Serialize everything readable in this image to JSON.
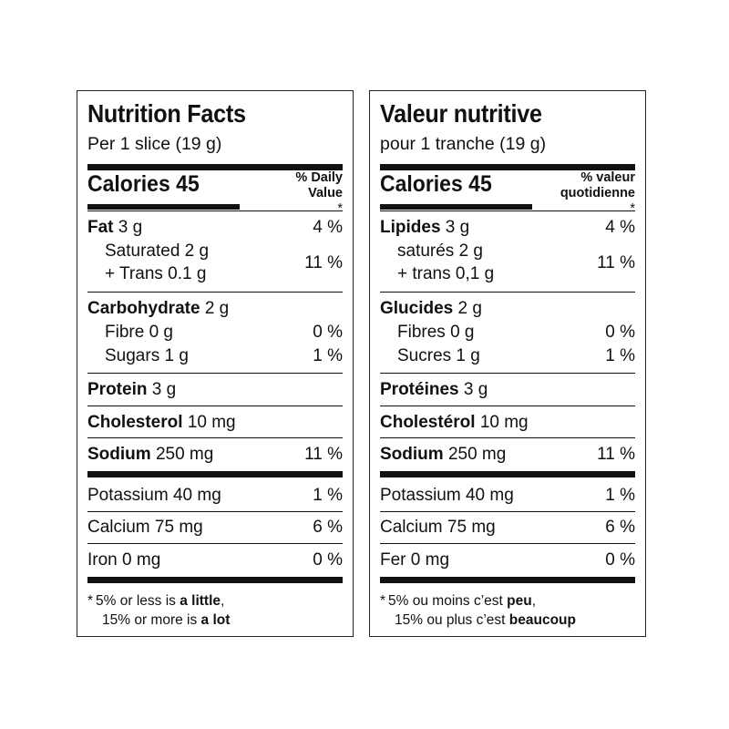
{
  "english": {
    "title": "Nutrition Facts",
    "serving": "Per 1 slice (19 g)",
    "calories_label": "Calories 45",
    "dv_line1": "% Daily",
    "dv_line2": "Value",
    "dv_star": "*",
    "fat_label": "Fat",
    "fat_amount": "3 g",
    "fat_pct": "4 %",
    "saturated": "Saturated 2 g",
    "trans": "+ Trans 0.1 g",
    "sat_trans_pct": "11 %",
    "carb_label": "Carbohydrate",
    "carb_amount": "2 g",
    "fibre": "Fibre 0 g",
    "fibre_pct": "0 %",
    "sugars": "Sugars 1 g",
    "sugars_pct": "1 %",
    "protein_label": "Protein",
    "protein_amount": "3 g",
    "chol_label": "Cholesterol",
    "chol_amount": "10 mg",
    "sodium_label": "Sodium",
    "sodium_amount": "250 mg",
    "sodium_pct": "11 %",
    "potassium": "Potassium 40 mg",
    "potassium_pct": "1 %",
    "calcium": "Calcium 75 mg",
    "calcium_pct": "6 %",
    "iron": "Iron 0 mg",
    "iron_pct": "0 %",
    "foot_star": "*",
    "foot_l1_pre": "5% or less is ",
    "foot_l1_bold": "a little",
    "foot_l1_post": ",",
    "foot_l2_pre": "15% or more is ",
    "foot_l2_bold": "a lot"
  },
  "french": {
    "title": "Valeur nutritive",
    "serving": "pour 1 tranche (19 g)",
    "calories_label": "Calories 45",
    "dv_line1": "% valeur",
    "dv_line2": "quotidienne",
    "dv_star": "*",
    "fat_label": "Lipides",
    "fat_amount": "3 g",
    "fat_pct": "4 %",
    "saturated": "saturés 2 g",
    "trans": "+ trans 0,1 g",
    "sat_trans_pct": "11 %",
    "carb_label": "Glucides",
    "carb_amount": "2 g",
    "fibre": "Fibres 0 g",
    "fibre_pct": "0 %",
    "sugars": "Sucres 1 g",
    "sugars_pct": "1 %",
    "protein_label": "Protéines",
    "protein_amount": "3 g",
    "chol_label": "Cholestérol",
    "chol_amount": "10 mg",
    "sodium_label": "Sodium",
    "sodium_amount": "250 mg",
    "sodium_pct": "11 %",
    "potassium": "Potassium 40 mg",
    "potassium_pct": "1 %",
    "calcium": "Calcium 75 mg",
    "calcium_pct": "6 %",
    "iron": "Fer 0 mg",
    "iron_pct": "0 %",
    "foot_star": "*",
    "foot_l1_pre": "5% ou moins c’est ",
    "foot_l1_bold": "peu",
    "foot_l1_post": ",",
    "foot_l2_pre": "15% ou plus c’est ",
    "foot_l2_bold": "beaucoup"
  }
}
